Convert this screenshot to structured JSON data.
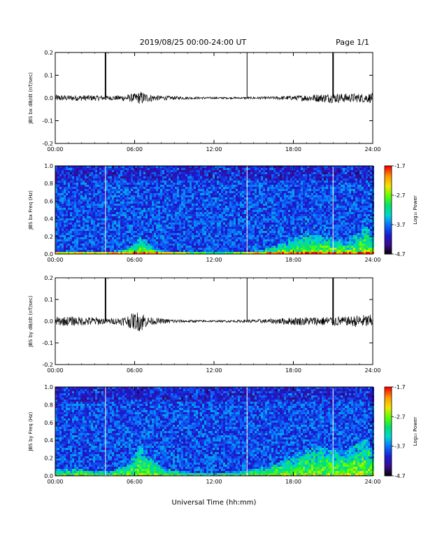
{
  "header": {
    "title": "2019/08/25  00:00-24:00 UT",
    "page": "Page 1/1"
  },
  "x_axis_label": "Universal Time (hh:mm)",
  "colors": {
    "spectrogram_background": "#1a0a3a",
    "waveform_line": "#000000",
    "data_gap_marker": "#ffffff"
  },
  "colorbar": {
    "label": "Log₁₀ Power",
    "ticks": [
      "-1.7",
      "-2.7",
      "-3.7",
      "-4.7"
    ],
    "colormap": [
      "#ff0000",
      "#ff9a00",
      "#f5e400",
      "#5cff00",
      "#00e070",
      "#00d6d6",
      "#0a6cff",
      "#1a1ad0",
      "#3a0a8a",
      "#000000"
    ]
  },
  "chart_data": [
    {
      "type": "line",
      "name": "JBS bx dB/dt",
      "ylabel": "JBS bx dB/dt (nT/sec)",
      "xlim": [
        0,
        24
      ],
      "ylim": [
        -0.2,
        0.2
      ],
      "x_ticks": [
        "00:00",
        "06:00",
        "12:00",
        "18:00",
        "24:00"
      ],
      "y_ticks": [
        "-0.2",
        "-0.1",
        "0.0",
        "0.1",
        "0.2"
      ],
      "spikes_hours": [
        3.8,
        14.5,
        21.0
      ],
      "spike_peak": 0.2,
      "envelope_hours": [
        0,
        1,
        2,
        3,
        4,
        5,
        6,
        6.5,
        7,
        8,
        10,
        12,
        14,
        16,
        18,
        19,
        20,
        21,
        22,
        23,
        24
      ],
      "envelope_amplitude": [
        0.015,
        0.012,
        0.013,
        0.012,
        0.01,
        0.012,
        0.02,
        0.03,
        0.018,
        0.01,
        0.006,
        0.004,
        0.004,
        0.006,
        0.01,
        0.015,
        0.018,
        0.022,
        0.02,
        0.02,
        0.022
      ]
    },
    {
      "type": "heatmap",
      "name": "JBS bx Freq",
      "ylabel": "JBS bx Freq (Hz)",
      "xlim": [
        0,
        24
      ],
      "ylim": [
        0,
        1.0
      ],
      "x_ticks": [
        "00:00",
        "06:00",
        "12:00",
        "18:00",
        "24:00"
      ],
      "y_ticks": [
        "0.0",
        "0.2",
        "0.4",
        "0.6",
        "0.8",
        "1.0"
      ],
      "zlim": [
        -4.7,
        -1.7
      ],
      "gaps_hours": [
        3.8,
        14.5,
        21.0
      ],
      "activity_hours": [
        0,
        2,
        4,
        5.5,
        6.3,
        8,
        10,
        12,
        14,
        16,
        18,
        19,
        20,
        22,
        23.5,
        24
      ],
      "activity_height_hz": [
        0.05,
        0.04,
        0.04,
        0.08,
        0.2,
        0.05,
        0.03,
        0.02,
        0.03,
        0.08,
        0.2,
        0.25,
        0.22,
        0.15,
        0.35,
        0.2
      ]
    },
    {
      "type": "line",
      "name": "JBS by dB/dt",
      "ylabel": "JBS by dB/dt (nT/sec)",
      "xlim": [
        0,
        24
      ],
      "ylim": [
        -0.2,
        0.2
      ],
      "x_ticks": [
        "00:00",
        "06:00",
        "12:00",
        "18:00",
        "24:00"
      ],
      "y_ticks": [
        "-0.2",
        "-0.1",
        "0.0",
        "0.1",
        "0.2"
      ],
      "spikes_hours": [
        3.8,
        14.5,
        21.0
      ],
      "spike_peak": 0.2,
      "envelope_hours": [
        0,
        1,
        2,
        3,
        4,
        5,
        6,
        6.5,
        7,
        8,
        10,
        12,
        14,
        16,
        18,
        19,
        20,
        21,
        22,
        23,
        24
      ],
      "envelope_amplitude": [
        0.02,
        0.022,
        0.02,
        0.02,
        0.012,
        0.018,
        0.04,
        0.05,
        0.02,
        0.012,
        0.006,
        0.004,
        0.006,
        0.01,
        0.018,
        0.02,
        0.02,
        0.025,
        0.02,
        0.03,
        0.03
      ]
    },
    {
      "type": "heatmap",
      "name": "JBS by Freq",
      "ylabel": "JBS by Freq (Hz)",
      "xlim": [
        0,
        24
      ],
      "ylim": [
        0,
        1.0
      ],
      "x_ticks": [
        "00:00",
        "06:00",
        "12:00",
        "18:00",
        "24:00"
      ],
      "y_ticks": [
        "0.0",
        "0.2",
        "0.4",
        "0.6",
        "0.8",
        "1.0"
      ],
      "zlim": [
        -4.7,
        -1.7
      ],
      "gaps_hours": [
        3.8,
        14.5,
        21.0
      ],
      "activity_hours": [
        0,
        2,
        4,
        5.5,
        6.3,
        8,
        10,
        12,
        14,
        16,
        18,
        19,
        20,
        22,
        23.5,
        24
      ],
      "activity_height_hz": [
        0.1,
        0.08,
        0.06,
        0.15,
        0.35,
        0.1,
        0.05,
        0.04,
        0.06,
        0.12,
        0.25,
        0.3,
        0.35,
        0.3,
        0.45,
        0.25
      ]
    }
  ]
}
